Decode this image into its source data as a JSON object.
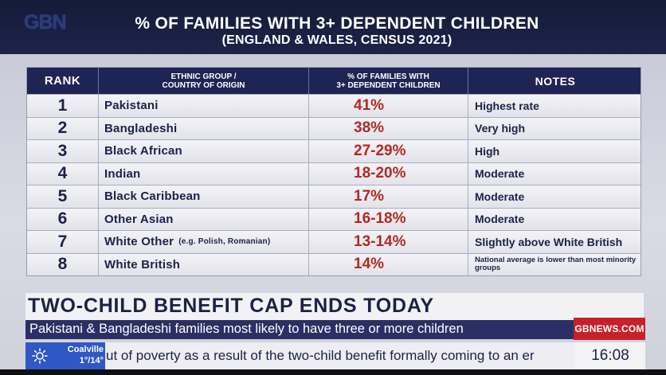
{
  "header": {
    "logo": "GBN",
    "title": "% OF FAMILIES WITH 3+ DEPENDENT CHILDREN",
    "subtitle": "(ENGLAND & WALES, CENSUS 2021)"
  },
  "table": {
    "headers": {
      "rank": "RANK",
      "group_line1": "ETHNIC GROUP /",
      "group_line2": "COUNTRY OF ORIGIN",
      "pct_line1": "% OF FAMILIES WITH",
      "pct_line2": "3+ DEPENDENT CHILDREN",
      "notes": "NOTES"
    },
    "rows": [
      {
        "rank": "1",
        "group": "Pakistani",
        "group_note": "",
        "pct": "41%",
        "notes": "Highest rate"
      },
      {
        "rank": "2",
        "group": "Bangladeshi",
        "group_note": "",
        "pct": "38%",
        "notes": "Very high"
      },
      {
        "rank": "3",
        "group": "Black African",
        "group_note": "",
        "pct": "27-29%",
        "notes": "High"
      },
      {
        "rank": "4",
        "group": "Indian",
        "group_note": "",
        "pct": "18-20%",
        "notes": "Moderate"
      },
      {
        "rank": "5",
        "group": "Black Caribbean",
        "group_note": "",
        "pct": "17%",
        "notes": "Moderate"
      },
      {
        "rank": "6",
        "group": "Other Asian",
        "group_note": "",
        "pct": "16-18%",
        "notes": "Moderate"
      },
      {
        "rank": "7",
        "group": "White Other",
        "group_note": "(e.g. Polish, Romanian)",
        "pct": "13-14%",
        "notes": "Slightly above White British"
      },
      {
        "rank": "8",
        "group": "White British",
        "group_note": "",
        "pct": "14%",
        "notes": "National average is lower than most minority groups"
      }
    ]
  },
  "lower_third": {
    "headline": "TWO-CHILD BENEFIT CAP ENDS TODAY",
    "subline": "Pakistani & Bangladeshi families most likely to have three or more children",
    "badge": "GBNEWS.COM",
    "weather_place": "Coalville",
    "weather_temp": "1°/14°",
    "ticker": "ut of poverty as a result of the two-child benefit formally coming to an er",
    "clock": "16:08"
  },
  "icons": {
    "weather": "sun-icon"
  },
  "colors": {
    "header_bg": "#1d2449",
    "table_header_bg": "#1e2453",
    "pct_text": "#b02a22",
    "badge_red": "#c8202b",
    "weather_blue": "#2f57c6"
  }
}
